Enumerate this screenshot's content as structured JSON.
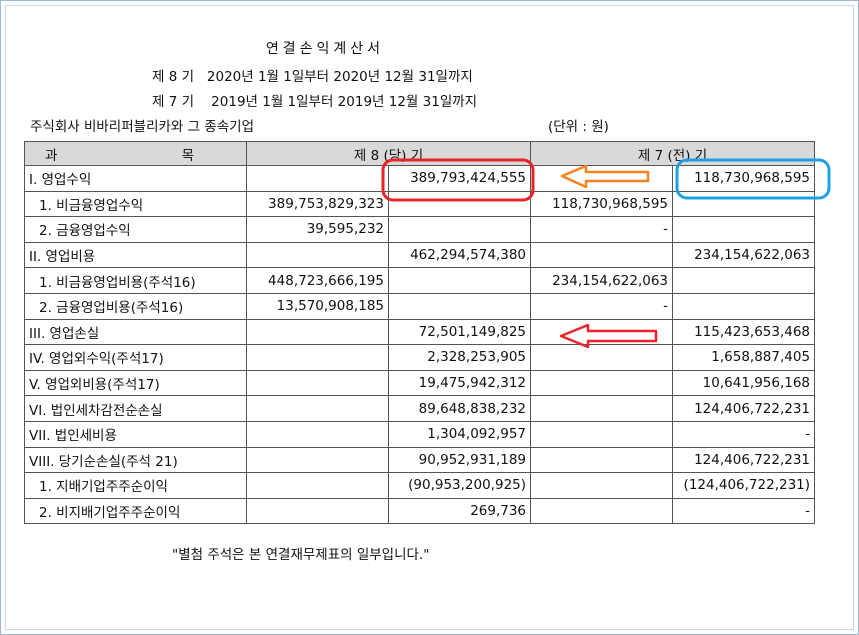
{
  "doc": {
    "title": "연결손익계산서",
    "period_current": "제 8 기   2020년 1월 1일부터 2020년 12월 31일까지",
    "period_prior": "제 7 기    2019년 1월 1일부터 2019년 12월 31일까지",
    "company": "주식회사 비바리퍼블리카와 그 종속기업",
    "unit": "(단위 : 원)",
    "footnote": "\"별첨 주석은 본 연결재무제표의 일부입니다.\""
  },
  "table": {
    "header": {
      "item_left": "과",
      "item_right": "목",
      "current": "제 8 (당) 기",
      "prior": "제 7 (전) 기"
    },
    "rows": [
      {
        "label": "I. 영업수익",
        "sub": false,
        "c1": "",
        "c2": "389,793,424,555",
        "p1": "",
        "p2": "118,730,968,595"
      },
      {
        "label": "1. 비금융영업수익",
        "sub": true,
        "c1": "389,753,829,323",
        "c2": "",
        "p1": "118,730,968,595",
        "p2": ""
      },
      {
        "label": "2. 금융영업수익",
        "sub": true,
        "c1": "39,595,232",
        "c2": "",
        "p1": "-",
        "p2": ""
      },
      {
        "label": "II. 영업비용",
        "sub": false,
        "c1": "",
        "c2": "462,294,574,380",
        "p1": "",
        "p2": "234,154,622,063"
      },
      {
        "label": "1. 비금융영업비용(주석16)",
        "sub": true,
        "c1": "448,723,666,195",
        "c2": "",
        "p1": "234,154,622,063",
        "p2": ""
      },
      {
        "label": "2. 금융영업비용(주석16)",
        "sub": true,
        "c1": "13,570,908,185",
        "c2": "",
        "p1": "-",
        "p2": ""
      },
      {
        "label": "III. 영업손실",
        "sub": false,
        "c1": "",
        "c2": "72,501,149,825",
        "p1": "",
        "p2": "115,423,653,468"
      },
      {
        "label": "IV. 영업외수익(주석17)",
        "sub": false,
        "c1": "",
        "c2": "2,328,253,905",
        "p1": "",
        "p2": "1,658,887,405"
      },
      {
        "label": "V. 영업외비용(주석17)",
        "sub": false,
        "c1": "",
        "c2": "19,475,942,312",
        "p1": "",
        "p2": "10,641,956,168"
      },
      {
        "label": "VI. 법인세차감전순손실",
        "sub": false,
        "c1": "",
        "c2": "89,648,838,232",
        "p1": "",
        "p2": "124,406,722,231"
      },
      {
        "label": "VII. 법인세비용",
        "sub": false,
        "c1": "",
        "c2": "1,304,092,957",
        "p1": "",
        "p2": "-"
      },
      {
        "label": "VIII. 당기순손실(주석 21)",
        "sub": false,
        "c1": "",
        "c2": "90,952,931,189",
        "p1": "",
        "p2": "124,406,722,231"
      },
      {
        "label": "1. 지배기업주주순이익",
        "sub": true,
        "c1": "",
        "c2": "(90,953,200,925)",
        "p1": "",
        "p2": "(124,406,722,231)"
      },
      {
        "label": "2. 비지배기업주주순이익",
        "sub": true,
        "c1": "",
        "c2": "269,736",
        "p1": "",
        "p2": "-"
      }
    ]
  },
  "annotations": {
    "red_box_color": "#e8232a",
    "blue_box_color": "#1ea0e6",
    "orange_arrow_color": "#f58220",
    "red_arrow_color": "#e8232a"
  }
}
